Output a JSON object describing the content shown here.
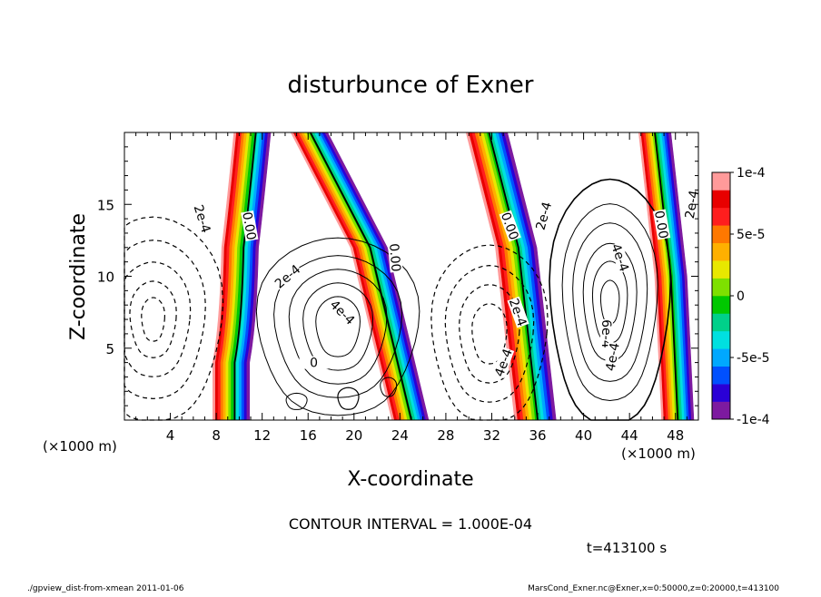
{
  "chart_data": {
    "type": "contour",
    "title": "disturbunce of Exner",
    "xlabel": "X-coordinate",
    "ylabel": "Z-coordinate",
    "x_unit_left": "(×1000 m)",
    "x_unit_right": "(×1000 m)",
    "xlim": [
      0,
      50
    ],
    "ylim": [
      0,
      20
    ],
    "xticks": [
      "4",
      "8",
      "12",
      "16",
      "20",
      "24",
      "28",
      "32",
      "36",
      "40",
      "44",
      "48"
    ],
    "yticks": [
      "5",
      "10",
      "15"
    ],
    "contour_interval_text": "CONTOUR INTERVAL = 1.000E-04",
    "time_text": "t=413100 s",
    "contour_labels": [
      {
        "text": "2e-4",
        "x": 6.8,
        "y": 14.0,
        "angle": 72
      },
      {
        "text": "0.00",
        "x": 10.9,
        "y": 13.5,
        "angle": 80
      },
      {
        "text": "2e-4",
        "x": 14.2,
        "y": 10.0,
        "angle": -40
      },
      {
        "text": "4e-4",
        "x": 19.0,
        "y": 7.5,
        "angle": 45
      },
      {
        "text": "0",
        "x": 16.5,
        "y": 4.0,
        "angle": 0
      },
      {
        "text": "0.00",
        "x": 23.6,
        "y": 11.3,
        "angle": 85
      },
      {
        "text": "0.00",
        "x": 33.6,
        "y": 13.5,
        "angle": 70
      },
      {
        "text": "2e-4",
        "x": 36.5,
        "y": 14.2,
        "angle": -75
      },
      {
        "text": "2e-4",
        "x": 34.3,
        "y": 7.5,
        "angle": 70
      },
      {
        "text": "4e-4",
        "x": 33.0,
        "y": 4.0,
        "angle": -70
      },
      {
        "text": "4e-4",
        "x": 43.2,
        "y": 11.3,
        "angle": 70
      },
      {
        "text": "6e-4",
        "x": 42.0,
        "y": 6.0,
        "angle": 90
      },
      {
        "text": "4e-4",
        "x": 42.5,
        "y": 4.4,
        "angle": -80
      },
      {
        "text": "0.00",
        "x": 46.8,
        "y": 13.6,
        "angle": 80
      },
      {
        "text": "2e-4",
        "x": 49.4,
        "y": 15.0,
        "angle": -80
      }
    ],
    "colorbar": {
      "ticks": [
        "1e-4",
        "5e-5",
        "0",
        "-5e-5",
        "-1e-4"
      ],
      "colors": [
        "#7d1aa0",
        "#2a00d6",
        "#0050ff",
        "#00a8ff",
        "#00e0e0",
        "#00d08a",
        "#00c800",
        "#7ee000",
        "#e8e800",
        "#ffb000",
        "#ff7800",
        "#ff1e1e",
        "#e80000",
        "#ff9a9a"
      ]
    }
  },
  "footer": {
    "left": "./gpview_dist-from-xmean  2011-01-06",
    "right": "MarsCond_Exner.nc@Exner,x=0:50000,z=0:20000,t=413100"
  }
}
